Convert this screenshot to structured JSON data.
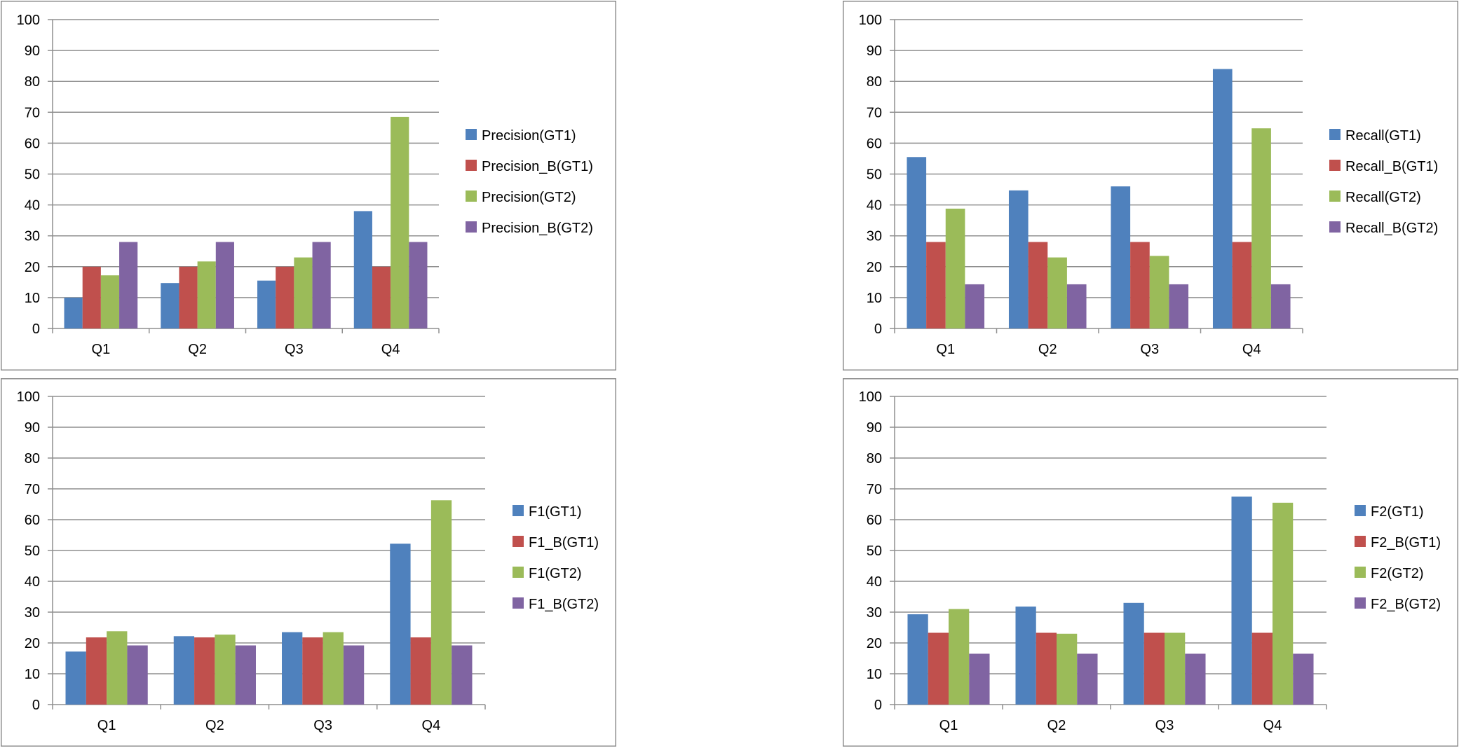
{
  "chart_data": [
    {
      "type": "bar",
      "title": "",
      "xlabel": "",
      "ylabel": "",
      "ylim": [
        0,
        100
      ],
      "yticks": [
        0,
        10,
        20,
        30,
        40,
        50,
        60,
        70,
        80,
        90,
        100
      ],
      "grid": true,
      "legend_position": "right",
      "categories": [
        "Q1",
        "Q2",
        "Q3",
        "Q4"
      ],
      "series": [
        {
          "name": "Precision(GT1)",
          "color": "#4F81BD",
          "values": [
            10,
            14.7,
            15.5,
            38
          ]
        },
        {
          "name": "Precision_B(GT1)",
          "color": "#C0504D",
          "values": [
            20,
            20,
            20,
            20
          ]
        },
        {
          "name": "Precision(GT2)",
          "color": "#9BBB59",
          "values": [
            17.2,
            21.7,
            23,
            68.5
          ]
        },
        {
          "name": "Precision_B(GT2)",
          "color": "#8064A2",
          "values": [
            28,
            28,
            28,
            28
          ]
        }
      ]
    },
    {
      "type": "bar",
      "title": "",
      "xlabel": "",
      "ylabel": "",
      "ylim": [
        0,
        100
      ],
      "yticks": [
        0,
        10,
        20,
        30,
        40,
        50,
        60,
        70,
        80,
        90,
        100
      ],
      "grid": true,
      "legend_position": "right",
      "categories": [
        "Q1",
        "Q2",
        "Q3",
        "Q4"
      ],
      "series": [
        {
          "name": "Recall(GT1)",
          "color": "#4F81BD",
          "values": [
            55.5,
            44.7,
            46,
            84
          ]
        },
        {
          "name": "Recall_B(GT1)",
          "color": "#C0504D",
          "values": [
            28,
            28,
            28,
            28
          ]
        },
        {
          "name": "Recall(GT2)",
          "color": "#9BBB59",
          "values": [
            38.8,
            23,
            23.5,
            64.8
          ]
        },
        {
          "name": "Recall_B(GT2)",
          "color": "#8064A2",
          "values": [
            14.3,
            14.3,
            14.3,
            14.3
          ]
        }
      ]
    },
    {
      "type": "bar",
      "title": "",
      "xlabel": "",
      "ylabel": "",
      "ylim": [
        0,
        100
      ],
      "yticks": [
        0,
        10,
        20,
        30,
        40,
        50,
        60,
        70,
        80,
        90,
        100
      ],
      "grid": true,
      "legend_position": "right",
      "categories": [
        "Q1",
        "Q2",
        "Q3",
        "Q4"
      ],
      "series": [
        {
          "name": "F1(GT1)",
          "color": "#4F81BD",
          "values": [
            17.2,
            22.2,
            23.5,
            52.2
          ]
        },
        {
          "name": "F1_B(GT1)",
          "color": "#C0504D",
          "values": [
            21.8,
            21.8,
            21.8,
            21.8
          ]
        },
        {
          "name": "F1(GT2)",
          "color": "#9BBB59",
          "values": [
            23.8,
            22.7,
            23.5,
            66.3
          ]
        },
        {
          "name": "F1_B(GT2)",
          "color": "#8064A2",
          "values": [
            19.2,
            19.2,
            19.2,
            19.2
          ]
        }
      ]
    },
    {
      "type": "bar",
      "title": "",
      "xlabel": "",
      "ylabel": "",
      "ylim": [
        0,
        100
      ],
      "yticks": [
        0,
        10,
        20,
        30,
        40,
        50,
        60,
        70,
        80,
        90,
        100
      ],
      "grid": true,
      "legend_position": "right",
      "categories": [
        "Q1",
        "Q2",
        "Q3",
        "Q4"
      ],
      "series": [
        {
          "name": "F2(GT1)",
          "color": "#4F81BD",
          "values": [
            29.3,
            31.8,
            33,
            67.5
          ]
        },
        {
          "name": "F2_B(GT1)",
          "color": "#C0504D",
          "values": [
            23.3,
            23.3,
            23.3,
            23.3
          ]
        },
        {
          "name": "F2(GT2)",
          "color": "#9BBB59",
          "values": [
            31,
            23,
            23.3,
            65.5
          ]
        },
        {
          "name": "F2_B(GT2)",
          "color": "#8064A2",
          "values": [
            16.5,
            16.5,
            16.5,
            16.5
          ]
        }
      ]
    }
  ]
}
